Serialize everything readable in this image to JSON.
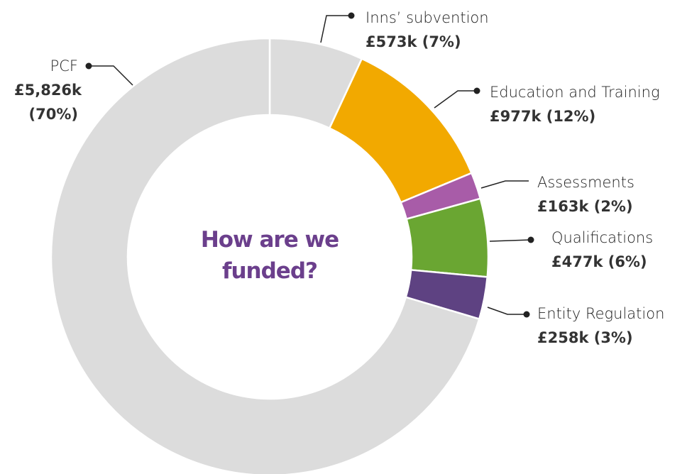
{
  "chart_data": {
    "type": "donut",
    "title": "How are we funded?",
    "categories": [
      "Inns’ subvention",
      "Education and Training",
      "Assessments",
      "Qualifications",
      "Entity Regulation",
      "PCF"
    ],
    "values": [
      573,
      977,
      163,
      477,
      258,
      5826
    ],
    "value_labels": [
      "£573k (7%)",
      "£977k (12%)",
      "£163k (2%)",
      "£477k (6%)",
      "£258k (3%)",
      "£5,826k (70%)"
    ],
    "colors": [
      "#dcdcdc",
      "#f2a900",
      "#a85ca8",
      "#6aa632",
      "#5e4282",
      "#dcdcdc"
    ]
  }
}
